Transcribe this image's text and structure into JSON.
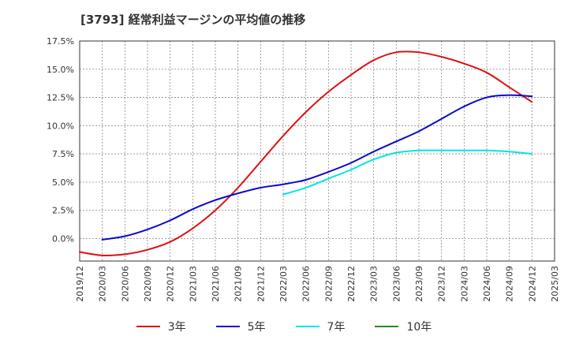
{
  "title": "[3793]  経常利益マージンの平均値の推移",
  "chart_data": {
    "type": "line",
    "title": "[3793]  経常利益マージンの平均値の推移",
    "xlabel": "",
    "ylabel": "",
    "x_ticks": [
      "2019/12",
      "2020/03",
      "2020/06",
      "2020/09",
      "2020/12",
      "2021/03",
      "2021/06",
      "2021/09",
      "2021/12",
      "2022/03",
      "2022/06",
      "2022/09",
      "2022/12",
      "2023/03",
      "2023/06",
      "2023/09",
      "2023/12",
      "2024/03",
      "2024/06",
      "2024/09",
      "2024/12",
      "2025/03"
    ],
    "y_ticks": [
      "0.0%",
      "2.5%",
      "5.0%",
      "7.5%",
      "10.0%",
      "12.5%",
      "15.0%",
      "17.5%"
    ],
    "ylim": [
      -2.0,
      17.5
    ],
    "grid": true,
    "legend_position": "bottom",
    "series": [
      {
        "name": "3年",
        "color": "#dd1111",
        "x": [
          "2019/12",
          "2020/03",
          "2020/06",
          "2020/09",
          "2020/12",
          "2021/03",
          "2021/06",
          "2021/09",
          "2021/12",
          "2022/03",
          "2022/06",
          "2022/09",
          "2022/12",
          "2023/03",
          "2023/06",
          "2023/09",
          "2023/12",
          "2024/03",
          "2024/06",
          "2024/09",
          "2024/12"
        ],
        "values": [
          -1.2,
          -1.5,
          -1.4,
          -1.0,
          -0.3,
          0.9,
          2.5,
          4.5,
          6.8,
          9.1,
          11.2,
          13.0,
          14.5,
          15.8,
          16.5,
          16.5,
          16.1,
          15.5,
          14.7,
          13.4,
          12.1
        ]
      },
      {
        "name": "5年",
        "color": "#0a0acc",
        "x": [
          "2020/03",
          "2020/06",
          "2020/09",
          "2020/12",
          "2021/03",
          "2021/06",
          "2021/09",
          "2021/12",
          "2022/03",
          "2022/06",
          "2022/09",
          "2022/12",
          "2023/03",
          "2023/06",
          "2023/09",
          "2023/12",
          "2024/03",
          "2024/06",
          "2024/09",
          "2024/12"
        ],
        "values": [
          -0.1,
          0.2,
          0.8,
          1.6,
          2.6,
          3.4,
          4.0,
          4.5,
          4.8,
          5.2,
          5.9,
          6.7,
          7.7,
          8.6,
          9.5,
          10.6,
          11.7,
          12.5,
          12.7,
          12.6
        ]
      },
      {
        "name": "7年",
        "color": "#00e5e5",
        "x": [
          "2022/03",
          "2022/06",
          "2022/09",
          "2022/12",
          "2023/03",
          "2023/06",
          "2023/09",
          "2023/12",
          "2024/03",
          "2024/06",
          "2024/09",
          "2024/12"
        ],
        "values": [
          3.9,
          4.5,
          5.3,
          6.1,
          7.0,
          7.6,
          7.8,
          7.8,
          7.8,
          7.8,
          7.7,
          7.5
        ]
      },
      {
        "name": "10年",
        "color": "#228b22",
        "x": [],
        "values": []
      }
    ]
  }
}
